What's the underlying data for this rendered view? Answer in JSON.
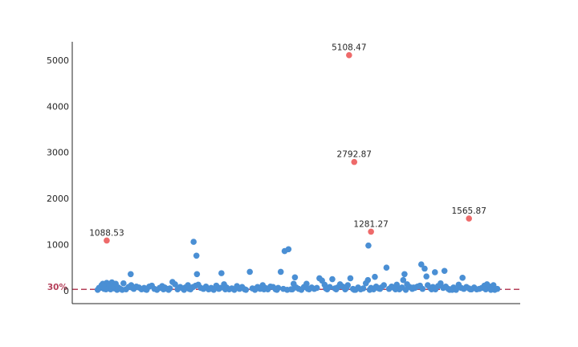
{
  "chart_data": {
    "type": "scatter",
    "title": "",
    "xlabel": "",
    "ylabel": "",
    "ylim": [
      -280,
      5400
    ],
    "xlim": [
      -8,
      162
    ],
    "yticks": [
      0,
      1000,
      2000,
      3000,
      4000,
      5000
    ],
    "grid": false,
    "colors": {
      "normal": "#4a8fd4",
      "outlier": "#ee6a6a",
      "reference_line": "#b5405a",
      "axis": "#262626"
    },
    "reference_line": {
      "y": 30,
      "label": "30%"
    },
    "series": [
      {
        "role": "normal",
        "points": [
          [
            0,
            20
          ],
          [
            1,
            60
          ],
          [
            1.5,
            120
          ],
          [
            2,
            150
          ],
          [
            2.5,
            40
          ],
          [
            3,
            90
          ],
          [
            3.5,
            170
          ],
          [
            4,
            60
          ],
          [
            4.5,
            130
          ],
          [
            5,
            30
          ],
          [
            5.5,
            180
          ],
          [
            6,
            100
          ],
          [
            6.5,
            50
          ],
          [
            7,
            150
          ],
          [
            7.5,
            20
          ],
          [
            8,
            70
          ],
          [
            10,
            160
          ],
          [
            11,
            30
          ],
          [
            12,
            80
          ],
          [
            12.8,
            360
          ],
          [
            13,
            120
          ],
          [
            14,
            40
          ],
          [
            15,
            90
          ],
          [
            16,
            70
          ],
          [
            17,
            30
          ],
          [
            18,
            60
          ],
          [
            19,
            20
          ],
          [
            20,
            90
          ],
          [
            21,
            110
          ],
          [
            22,
            40
          ],
          [
            23,
            20
          ],
          [
            24,
            60
          ],
          [
            25,
            100
          ],
          [
            26,
            70
          ],
          [
            27,
            40
          ],
          [
            28,
            50
          ],
          [
            29,
            190
          ],
          [
            30,
            140
          ],
          [
            31,
            30
          ],
          [
            32,
            80
          ],
          [
            33,
            50
          ],
          [
            34,
            70
          ],
          [
            35,
            120
          ],
          [
            36,
            30
          ],
          [
            37,
            80
          ],
          [
            38,
            110
          ],
          [
            38.5,
            360
          ],
          [
            39,
            130
          ],
          [
            40,
            60
          ],
          [
            41,
            40
          ],
          [
            42,
            90
          ],
          [
            43,
            30
          ],
          [
            44,
            60
          ],
          [
            45,
            20
          ],
          [
            46,
            110
          ],
          [
            47,
            40
          ],
          [
            48,
            380
          ],
          [
            49,
            140
          ],
          [
            50,
            70
          ],
          [
            51,
            30
          ],
          [
            52,
            50
          ],
          [
            53,
            20
          ],
          [
            54,
            100
          ],
          [
            55,
            40
          ],
          [
            56,
            80
          ],
          [
            57,
            30
          ],
          [
            59,
            410
          ],
          [
            60,
            50
          ],
          [
            61,
            20
          ],
          [
            62,
            80
          ],
          [
            63,
            40
          ],
          [
            64,
            120
          ],
          [
            65,
            60
          ],
          [
            66,
            30
          ],
          [
            67,
            90
          ],
          [
            68,
            80
          ],
          [
            69,
            30
          ],
          [
            70,
            60
          ],
          [
            71,
            410
          ],
          [
            72,
            40
          ],
          [
            72.5,
            860
          ],
          [
            74,
            900
          ],
          [
            75,
            30
          ],
          [
            76,
            150
          ],
          [
            76.5,
            290
          ],
          [
            77,
            70
          ],
          [
            78,
            40
          ],
          [
            79,
            20
          ],
          [
            80,
            80
          ],
          [
            81,
            150
          ],
          [
            82,
            30
          ],
          [
            83,
            70
          ],
          [
            84,
            40
          ],
          [
            85,
            60
          ],
          [
            86,
            270
          ],
          [
            87,
            220
          ],
          [
            88,
            130
          ],
          [
            89,
            30
          ],
          [
            90,
            80
          ],
          [
            91,
            250
          ],
          [
            92,
            50
          ],
          [
            93,
            70
          ],
          [
            94,
            140
          ],
          [
            95,
            90
          ],
          [
            96,
            30
          ],
          [
            97,
            120
          ],
          [
            98,
            270
          ],
          [
            99,
            40
          ],
          [
            100,
            20
          ],
          [
            101,
            70
          ],
          [
            102,
            30
          ],
          [
            103,
            50
          ],
          [
            104,
            160
          ],
          [
            104.8,
            230
          ],
          [
            105,
            980
          ],
          [
            106,
            60
          ],
          [
            107,
            30
          ],
          [
            107.5,
            300
          ],
          [
            108,
            90
          ],
          [
            109,
            50
          ],
          [
            110,
            70
          ],
          [
            111,
            120
          ],
          [
            112,
            500
          ],
          [
            113,
            40
          ],
          [
            114,
            90
          ],
          [
            115,
            60
          ],
          [
            116,
            130
          ],
          [
            117,
            30
          ],
          [
            118,
            70
          ],
          [
            118.5,
            230
          ],
          [
            119,
            360
          ],
          [
            120,
            140
          ],
          [
            121,
            80
          ],
          [
            122,
            40
          ],
          [
            123,
            60
          ],
          [
            124,
            90
          ],
          [
            125,
            110
          ],
          [
            125.5,
            570
          ],
          [
            126,
            40
          ],
          [
            126.8,
            480
          ],
          [
            127.5,
            310
          ],
          [
            128,
            120
          ],
          [
            129,
            60
          ],
          [
            130,
            80
          ],
          [
            130.8,
            400
          ],
          [
            131,
            30
          ],
          [
            132,
            100
          ],
          [
            133,
            160
          ],
          [
            134,
            60
          ],
          [
            134.5,
            430
          ],
          [
            135,
            90
          ],
          [
            136,
            40
          ],
          [
            137,
            30
          ],
          [
            138,
            70
          ],
          [
            139,
            20
          ],
          [
            140,
            130
          ],
          [
            141,
            60
          ],
          [
            141.5,
            280
          ],
          [
            142,
            40
          ],
          [
            143,
            80
          ],
          [
            144,
            50
          ],
          [
            145,
            30
          ],
          [
            146,
            70
          ],
          [
            147,
            30
          ],
          [
            148,
            40
          ],
          [
            149,
            60
          ],
          [
            150,
            110
          ],
          [
            151,
            140
          ],
          [
            152,
            90
          ],
          [
            153,
            60
          ],
          [
            154,
            20
          ],
          [
            155,
            40
          ],
          [
            2.2,
            90
          ],
          [
            5.2,
            110
          ],
          [
            8.8,
            40
          ],
          [
            25.5,
            30
          ],
          [
            35.5,
            40
          ],
          [
            47.5,
            60
          ],
          [
            61.5,
            50
          ],
          [
            69.5,
            20
          ],
          [
            75.5,
            30
          ],
          [
            88.5,
            50
          ],
          [
            96.5,
            60
          ],
          [
            105.5,
            20
          ],
          [
            115.5,
            30
          ],
          [
            122.5,
            70
          ],
          [
            137.5,
            20
          ],
          [
            150.5,
            30
          ],
          [
            153.5,
            120
          ],
          [
            0.5,
            60
          ],
          [
            3.2,
            30
          ],
          [
            9.5,
            20
          ],
          [
            13.5,
            60
          ],
          [
            18.5,
            30
          ],
          [
            27.5,
            20
          ],
          [
            33.5,
            20
          ],
          [
            43.5,
            40
          ],
          [
            49.5,
            30
          ],
          [
            57.5,
            20
          ],
          [
            64.5,
            30
          ],
          [
            73.5,
            20
          ],
          [
            81.5,
            40
          ],
          [
            92.5,
            30
          ],
          [
            99.5,
            20
          ],
          [
            109.5,
            40
          ],
          [
            119.5,
            20
          ],
          [
            129.5,
            30
          ],
          [
            136.5,
            20
          ],
          [
            144.5,
            30
          ],
          [
            152.5,
            20
          ],
          [
            37.2,
            1060
          ],
          [
            38.3,
            760
          ]
        ]
      },
      {
        "role": "outlier",
        "points": [
          {
            "x": 3.5,
            "y": 1088.53,
            "label": "1088.53"
          },
          {
            "x": 97.5,
            "y": 5108.47,
            "label": "5108.47"
          },
          {
            "x": 99.5,
            "y": 2792.87,
            "label": "2792.87"
          },
          {
            "x": 106,
            "y": 1281.27,
            "label": "1281.27"
          },
          {
            "x": 144,
            "y": 1565.87,
            "label": "1565.87"
          }
        ]
      }
    ]
  }
}
